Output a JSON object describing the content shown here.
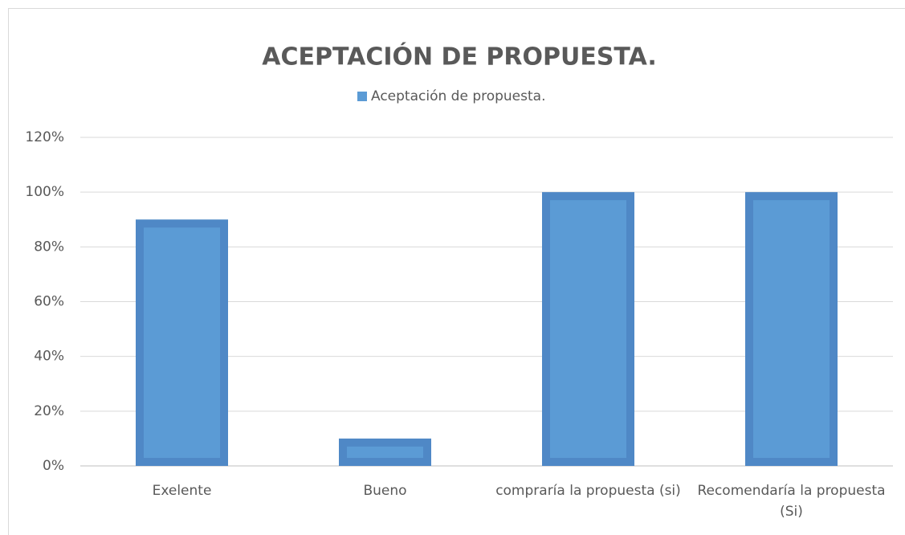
{
  "chart_data": {
    "type": "bar",
    "title": "ACEPTACIÓN DE PROPUESTA.",
    "categories": [
      "Exelente",
      "Bueno",
      "compraría la propuesta (si)",
      "Recomendaría la propuesta (Si)"
    ],
    "series": [
      {
        "name": "Aceptación de propuesta.",
        "color": "#5b9bd5",
        "values": [
          90,
          10,
          100,
          100
        ]
      }
    ],
    "ylim": [
      0,
      120
    ],
    "yticks": [
      {
        "value": 0,
        "label": "0%"
      },
      {
        "value": 20,
        "label": "20%"
      },
      {
        "value": 40,
        "label": "40%"
      },
      {
        "value": 60,
        "label": "60%"
      },
      {
        "value": 80,
        "label": "80%"
      },
      {
        "value": 100,
        "label": "100%"
      },
      {
        "value": 120,
        "label": "120%"
      }
    ],
    "grid": true,
    "legend": "top"
  }
}
